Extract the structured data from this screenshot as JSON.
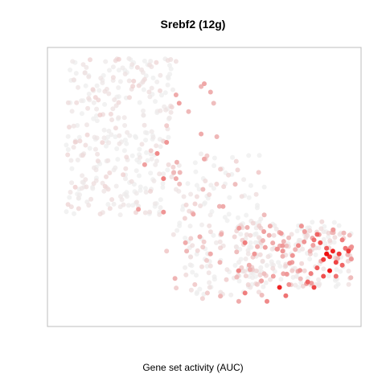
{
  "chart_data": {
    "type": "scatter",
    "title": "Srebf2 (12g)",
    "xlabel": "Gene set activity (AUC)",
    "ylabel": "",
    "xlim": [
      0,
      100
    ],
    "ylim": [
      0,
      100
    ],
    "grid": false,
    "axes_visible": false,
    "colors": {
      "low": "#eeeeee",
      "high": "#ee0000"
    },
    "random_seed": 11,
    "points_generated": [
      {
        "x": [
          6,
          40
        ],
        "y": [
          40,
          96
        ],
        "n": 320,
        "value": [
          0.0,
          0.15
        ]
      },
      {
        "x": [
          40,
          70
        ],
        "y": [
          10,
          62
        ],
        "n": 180,
        "value": [
          0.0,
          0.3
        ]
      },
      {
        "x": [
          60,
          97
        ],
        "y": [
          14,
          38
        ],
        "n": 240,
        "value": [
          0.0,
          0.4
        ]
      }
    ],
    "points": [
      {
        "x": 8,
        "y": 95,
        "value": 0.03
      },
      {
        "x": 12,
        "y": 91,
        "value": 0.05
      },
      {
        "x": 17,
        "y": 89,
        "value": 0.04
      },
      {
        "x": 21,
        "y": 93,
        "value": 0.02
      },
      {
        "x": 26,
        "y": 96,
        "value": 0.03
      },
      {
        "x": 30,
        "y": 92,
        "value": 0.06
      },
      {
        "x": 36,
        "y": 90,
        "value": 0.05
      },
      {
        "x": 41,
        "y": 95,
        "value": 0.08
      },
      {
        "x": 49,
        "y": 86,
        "value": 0.25
      },
      {
        "x": 50,
        "y": 87,
        "value": 0.32
      },
      {
        "x": 52,
        "y": 84,
        "value": 0.28
      },
      {
        "x": 53,
        "y": 80,
        "value": 0.22
      },
      {
        "x": 41,
        "y": 83,
        "value": 0.3
      },
      {
        "x": 42,
        "y": 80,
        "value": 0.35
      },
      {
        "x": 45,
        "y": 77,
        "value": 0.24
      },
      {
        "x": 38,
        "y": 72,
        "value": 0.2
      },
      {
        "x": 54,
        "y": 68,
        "value": 0.25
      },
      {
        "x": 49,
        "y": 69,
        "value": 0.3
      },
      {
        "x": 38,
        "y": 66,
        "value": 0.4
      },
      {
        "x": 33,
        "y": 63,
        "value": 0.2
      },
      {
        "x": 35,
        "y": 62,
        "value": 0.45
      },
      {
        "x": 50,
        "y": 60,
        "value": 0.3
      },
      {
        "x": 37,
        "y": 53,
        "value": 0.5
      },
      {
        "x": 31,
        "y": 58,
        "value": 0.35
      },
      {
        "x": 41,
        "y": 53,
        "value": 0.3
      },
      {
        "x": 37,
        "y": 41,
        "value": 0.4
      },
      {
        "x": 29,
        "y": 42,
        "value": 0.35
      },
      {
        "x": 56,
        "y": 43,
        "value": 0.3
      },
      {
        "x": 85,
        "y": 31,
        "value": 0.55
      },
      {
        "x": 87,
        "y": 30,
        "value": 0.7
      },
      {
        "x": 86,
        "y": 33,
        "value": 0.6
      },
      {
        "x": 89,
        "y": 28,
        "value": 0.65
      },
      {
        "x": 90,
        "y": 25,
        "value": 0.85
      },
      {
        "x": 89,
        "y": 26,
        "value": 1.0
      },
      {
        "x": 91,
        "y": 27,
        "value": 0.9
      },
      {
        "x": 88,
        "y": 24,
        "value": 0.8
      },
      {
        "x": 92,
        "y": 23,
        "value": 0.75
      },
      {
        "x": 93,
        "y": 26,
        "value": 0.8
      },
      {
        "x": 90,
        "y": 20,
        "value": 0.95
      },
      {
        "x": 88,
        "y": 18,
        "value": 0.7
      },
      {
        "x": 86,
        "y": 21,
        "value": 0.65
      },
      {
        "x": 84,
        "y": 19,
        "value": 0.5
      },
      {
        "x": 83,
        "y": 16,
        "value": 0.6
      },
      {
        "x": 85,
        "y": 14,
        "value": 0.75
      },
      {
        "x": 92,
        "y": 18,
        "value": 0.55
      },
      {
        "x": 94,
        "y": 22,
        "value": 0.6
      },
      {
        "x": 95,
        "y": 28,
        "value": 0.55
      },
      {
        "x": 96,
        "y": 27,
        "value": 0.8
      },
      {
        "x": 94,
        "y": 31,
        "value": 0.5
      },
      {
        "x": 80,
        "y": 29,
        "value": 0.45
      },
      {
        "x": 78,
        "y": 23,
        "value": 0.35
      },
      {
        "x": 75,
        "y": 27,
        "value": 0.4
      },
      {
        "x": 74,
        "y": 14,
        "value": 0.9
      },
      {
        "x": 76,
        "y": 11,
        "value": 0.55
      },
      {
        "x": 77,
        "y": 15,
        "value": 0.4
      },
      {
        "x": 72,
        "y": 18,
        "value": 0.35
      },
      {
        "x": 63,
        "y": 30,
        "value": 0.5
      },
      {
        "x": 66,
        "y": 26,
        "value": 0.4
      },
      {
        "x": 61,
        "y": 20,
        "value": 0.45
      },
      {
        "x": 63,
        "y": 12,
        "value": 0.5
      },
      {
        "x": 70,
        "y": 9,
        "value": 0.45
      },
      {
        "x": 61,
        "y": 9,
        "value": 0.3
      },
      {
        "x": 55,
        "y": 23,
        "value": 0.25
      },
      {
        "x": 52,
        "y": 26,
        "value": 0.3
      },
      {
        "x": 44,
        "y": 30,
        "value": 0.3
      },
      {
        "x": 38,
        "y": 27,
        "value": 0.2
      },
      {
        "x": 47,
        "y": 15,
        "value": 0.2
      },
      {
        "x": 51,
        "y": 12,
        "value": 0.2
      },
      {
        "x": 69,
        "y": 34,
        "value": 0.35
      },
      {
        "x": 71,
        "y": 36,
        "value": 0.3
      },
      {
        "x": 82,
        "y": 34,
        "value": 0.35
      },
      {
        "x": 81,
        "y": 36,
        "value": 0.4
      }
    ]
  }
}
